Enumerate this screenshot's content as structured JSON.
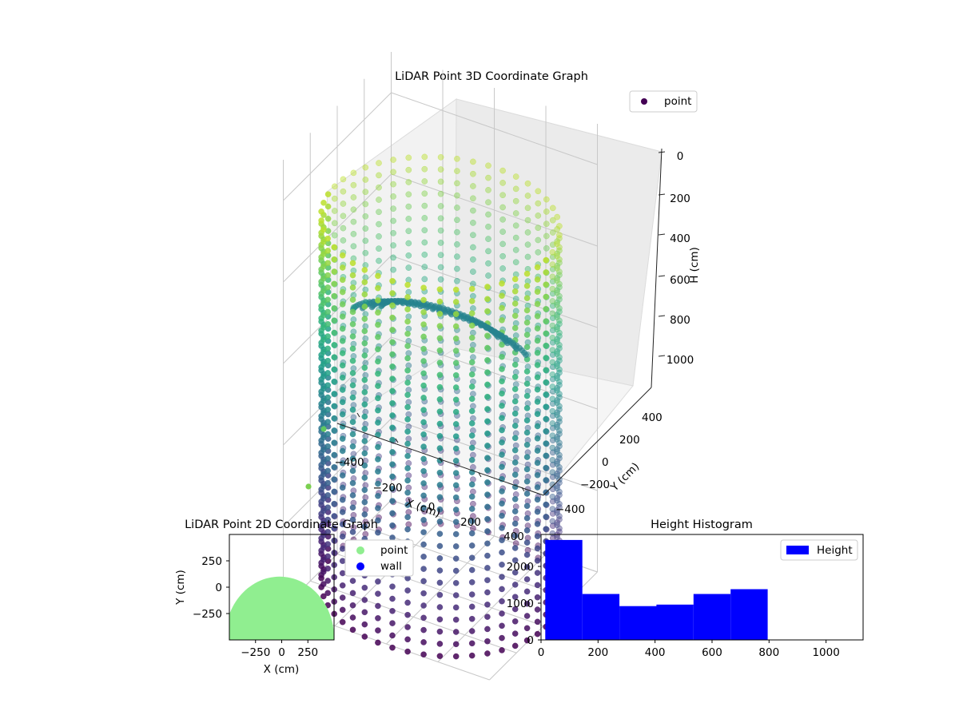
{
  "chart_data": [
    {
      "type": "scatter",
      "title": "LiDAR Point 3D Coordinate Graph",
      "xlabel": "X (cm)",
      "ylabel": "Y (cm)",
      "zlabel": "H (cm)",
      "x_ticks": [
        "−400",
        "−200",
        "0",
        "200",
        "400"
      ],
      "y_ticks": [
        "−400",
        "−200",
        "0",
        "200",
        "400"
      ],
      "z_ticks": [
        "0",
        "200",
        "400",
        "600",
        "800",
        "1000"
      ],
      "zlim": [
        0,
        1100
      ],
      "z_inverted": true,
      "grid": true,
      "colormap": "viridis",
      "legend": {
        "placement": "top-right",
        "entries": [
          {
            "label": "point",
            "color": "#440154"
          }
        ]
      }
    },
    {
      "type": "scatter",
      "title": "LiDAR Point 2D Coordinate Graph",
      "xlabel": "X (cm)",
      "ylabel": "Y (cm)",
      "x_ticks": [
        "−250",
        "0",
        "250"
      ],
      "y_ticks": [
        "250",
        "0",
        "−250"
      ],
      "xlim": [
        -500,
        500
      ],
      "ylim": [
        -500,
        500
      ],
      "series": [
        {
          "name": "point",
          "color": "#90ee90"
        },
        {
          "name": "wall",
          "color": "#0000ff"
        }
      ],
      "legend": {
        "placement": "outside-right"
      }
    },
    {
      "type": "bar",
      "title": "Height Histogram",
      "series": [
        {
          "name": "Height",
          "color": "#0000ff"
        }
      ],
      "bins": [
        {
          "x0": 15,
          "x1": 145,
          "count": 2720
        },
        {
          "x0": 145,
          "x1": 275,
          "count": 1250
        },
        {
          "x0": 275,
          "x1": 405,
          "count": 920
        },
        {
          "x0": 405,
          "x1": 535,
          "count": 960
        },
        {
          "x0": 535,
          "x1": 665,
          "count": 1250
        },
        {
          "x0": 665,
          "x1": 795,
          "count": 1380
        }
      ],
      "x_ticks": [
        "0",
        "200",
        "400",
        "600",
        "800",
        "1000"
      ],
      "y_ticks": [
        "0",
        "1000",
        "2000"
      ],
      "xlim": [
        0,
        1130
      ],
      "ylim": [
        0,
        2870
      ],
      "legend": {
        "placement": "top-right"
      }
    }
  ]
}
